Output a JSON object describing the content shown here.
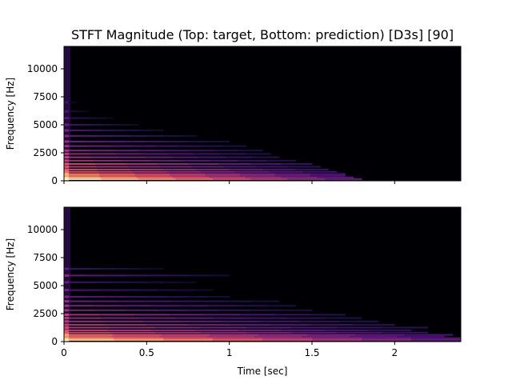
{
  "chart_data": {
    "type": "heatmap",
    "title": "STFT Magnitude (Top: target, Bottom: prediction) [D3s] [90]",
    "colormap": "magma",
    "background_color": "#000004",
    "panels": [
      {
        "id": "target",
        "ylabel": "Frequency [Hz]",
        "xlabel": "",
        "xlim": [
          0,
          2.4
        ],
        "ylim": [
          0,
          12000
        ],
        "yticks": [
          0,
          2500,
          5000,
          7500,
          10000
        ],
        "ytick_labels": [
          "0",
          "2500",
          "5000",
          "7500",
          "10000"
        ],
        "xticks": [
          0,
          0.5,
          1,
          1.5,
          2
        ],
        "xtick_labels": [],
        "onset_sec": 0.0,
        "decay_end_sec": 1.8,
        "harmonics": [
          {
            "freq": 150,
            "mag": 0.95,
            "end": 1.8
          },
          {
            "freq": 300,
            "mag": 0.85,
            "end": 1.75
          },
          {
            "freq": 450,
            "mag": 0.7,
            "end": 1.7
          },
          {
            "freq": 600,
            "mag": 0.75,
            "end": 1.7
          },
          {
            "freq": 800,
            "mag": 0.6,
            "end": 1.65
          },
          {
            "freq": 1000,
            "mag": 0.55,
            "end": 1.6
          },
          {
            "freq": 1250,
            "mag": 0.5,
            "end": 1.55
          },
          {
            "freq": 1500,
            "mag": 0.55,
            "end": 1.5
          },
          {
            "freq": 1800,
            "mag": 0.45,
            "end": 1.4
          },
          {
            "freq": 2100,
            "mag": 0.45,
            "end": 1.3
          },
          {
            "freq": 2400,
            "mag": 0.4,
            "end": 1.25
          },
          {
            "freq": 2700,
            "mag": 0.38,
            "end": 1.2
          },
          {
            "freq": 3100,
            "mag": 0.35,
            "end": 1.1
          },
          {
            "freq": 3500,
            "mag": 0.32,
            "end": 1.0
          },
          {
            "freq": 4000,
            "mag": 0.28,
            "end": 0.8
          },
          {
            "freq": 4500,
            "mag": 0.25,
            "end": 0.6
          },
          {
            "freq": 5000,
            "mag": 0.22,
            "end": 0.45
          },
          {
            "freq": 5600,
            "mag": 0.18,
            "end": 0.3
          },
          {
            "freq": 6200,
            "mag": 0.14,
            "end": 0.15
          },
          {
            "freq": 7000,
            "mag": 0.1,
            "end": 0.08
          }
        ]
      },
      {
        "id": "prediction",
        "ylabel": "Frequency [Hz]",
        "xlabel": "Time [sec]",
        "xlim": [
          0,
          2.4
        ],
        "ylim": [
          0,
          12000
        ],
        "yticks": [
          0,
          2500,
          5000,
          7500,
          10000
        ],
        "ytick_labels": [
          "0",
          "2500",
          "5000",
          "7500",
          "10000"
        ],
        "xticks": [
          0,
          0.5,
          1,
          1.5,
          2
        ],
        "xtick_labels": [
          "0",
          "0.5",
          "1",
          "1.5",
          "2"
        ],
        "onset_sec": 0.0,
        "decay_end_sec": 2.4,
        "harmonics": [
          {
            "freq": 150,
            "mag": 0.9,
            "end": 2.4
          },
          {
            "freq": 300,
            "mag": 0.8,
            "end": 2.4
          },
          {
            "freq": 450,
            "mag": 0.65,
            "end": 2.3
          },
          {
            "freq": 600,
            "mag": 0.7,
            "end": 2.35
          },
          {
            "freq": 800,
            "mag": 0.55,
            "end": 2.2
          },
          {
            "freq": 1000,
            "mag": 0.5,
            "end": 2.1
          },
          {
            "freq": 1250,
            "mag": 0.48,
            "end": 2.2
          },
          {
            "freq": 1500,
            "mag": 0.45,
            "end": 2.0
          },
          {
            "freq": 1800,
            "mag": 0.42,
            "end": 1.9
          },
          {
            "freq": 2100,
            "mag": 0.4,
            "end": 1.8
          },
          {
            "freq": 2400,
            "mag": 0.45,
            "end": 1.7
          },
          {
            "freq": 2800,
            "mag": 0.35,
            "end": 1.5
          },
          {
            "freq": 3200,
            "mag": 0.35,
            "end": 1.4
          },
          {
            "freq": 3600,
            "mag": 0.32,
            "end": 1.3
          },
          {
            "freq": 4000,
            "mag": 0.28,
            "end": 1.0
          },
          {
            "freq": 4600,
            "mag": 0.25,
            "end": 0.9
          },
          {
            "freq": 5300,
            "mag": 0.22,
            "end": 0.8
          },
          {
            "freq": 5900,
            "mag": 0.3,
            "end": 1.0
          },
          {
            "freq": 6500,
            "mag": 0.2,
            "end": 0.6
          }
        ]
      }
    ]
  }
}
